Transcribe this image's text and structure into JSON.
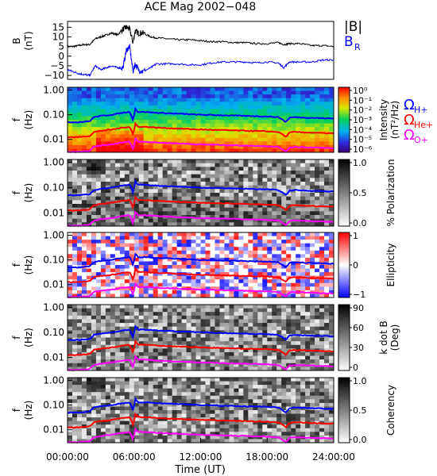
{
  "chart_data": [
    {
      "type": "line",
      "title": "ACE Mag 2002−048",
      "ylabel": "B",
      "yunit": "(nT)",
      "yticks": [
        "15",
        "10",
        "5",
        "0",
        "−5",
        "−10"
      ],
      "ytick_values": [
        15,
        10,
        5,
        0,
        -5,
        -10
      ],
      "ylim": [
        -12,
        18
      ],
      "xlim": [
        0,
        24
      ],
      "series": [
        {
          "name": "|B|",
          "color": "#000000",
          "x": [
            0,
            0.5,
            1,
            1.5,
            2,
            2.5,
            3,
            3.5,
            4,
            4.5,
            5,
            5.3,
            5.6,
            5.9,
            6.1,
            6.4,
            6.8,
            7.5,
            8,
            9,
            10,
            11,
            12,
            13,
            14,
            15,
            16,
            17,
            18,
            19,
            19.5,
            20,
            21,
            22,
            23,
            24
          ],
          "y": [
            5,
            5,
            5.5,
            6,
            6,
            9,
            10,
            11,
            12,
            11,
            14,
            15,
            14,
            7,
            13,
            12,
            12,
            10,
            9.5,
            9,
            8.5,
            8.5,
            8,
            7.5,
            7.5,
            7,
            7,
            6.5,
            6.5,
            7,
            6,
            6.5,
            6.5,
            5.5,
            5.5,
            5
          ]
        },
        {
          "name": "B",
          "name_sub": "R",
          "color": "#0000ff",
          "x": [
            0,
            0.5,
            1,
            1.5,
            2,
            2.5,
            3,
            3.5,
            4,
            4.5,
            5,
            5.3,
            5.6,
            5.9,
            6.1,
            6.4,
            6.8,
            7.5,
            8,
            9,
            10,
            11,
            12,
            13,
            14,
            15,
            16,
            17,
            18,
            19,
            19.5,
            20,
            21,
            22,
            23,
            24
          ],
          "y": [
            -7,
            -8,
            -9,
            -9.5,
            -10,
            -5,
            -7,
            -6,
            -5,
            -6,
            -6,
            3,
            5,
            -8,
            -4,
            -7,
            -8,
            -6,
            -4,
            -4,
            -4,
            -4.5,
            -4.5,
            -3.5,
            -3,
            -3,
            -3,
            -3.5,
            -3,
            -3.5,
            -6,
            -3,
            -3,
            -3,
            -2,
            -2
          ]
        }
      ]
    },
    {
      "type": "heatmap",
      "ylabel": "f",
      "yunit": "(Hz)",
      "yscale": "log",
      "ylim": [
        0.003,
        1.3
      ],
      "yticks": [
        "1.00",
        "0.10",
        "0.01"
      ],
      "colorbar": {
        "label": "Intensity",
        "unit": "(nT²/Hz)",
        "scale": "rainbow",
        "ticks": [
          "10⁰",
          "10⁻¹",
          "10⁻²",
          "10⁻³",
          "10⁻⁴",
          "10⁻⁵",
          "10⁻⁶"
        ]
      },
      "lines": [
        {
          "name": "Ω",
          "name_sub": "H+",
          "color": "#0000ff"
        },
        {
          "name": "Ω",
          "name_sub": "He+",
          "color": "#ff0000"
        },
        {
          "name": "Ω",
          "name_sub": "O+",
          "color": "#ff00ff"
        }
      ]
    },
    {
      "type": "heatmap",
      "ylabel": "f",
      "yunit": "(Hz)",
      "yscale": "log",
      "ylim": [
        0.003,
        1.3
      ],
      "yticks": [
        "1.00",
        "0.10",
        "0.01"
      ],
      "colorbar": {
        "label": "% Polarization",
        "scale": "gray",
        "ticks": [
          "1.0",
          "0.5",
          "0.0"
        ]
      }
    },
    {
      "type": "heatmap",
      "ylabel": "f",
      "yunit": "(Hz)",
      "yscale": "log",
      "ylim": [
        0.003,
        1.3
      ],
      "yticks": [
        "1.00",
        "0.10",
        "0.01"
      ],
      "colorbar": {
        "label": "Ellipticity",
        "scale": "bwr",
        "ticks": [
          "1",
          "0",
          "−1"
        ]
      }
    },
    {
      "type": "heatmap",
      "ylabel": "f",
      "yunit": "(Hz)",
      "yscale": "log",
      "ylim": [
        0.003,
        1.3
      ],
      "yticks": [
        "1.00",
        "0.10",
        "0.01"
      ],
      "colorbar": {
        "label": "k dot B",
        "unit": "(Deg)",
        "scale": "gray",
        "ticks": [
          "90",
          "60",
          "30",
          "0"
        ]
      }
    },
    {
      "type": "heatmap",
      "ylabel": "f",
      "yunit": "(Hz)",
      "yscale": "log",
      "ylim": [
        0.003,
        1.3
      ],
      "yticks": [
        "1.00",
        "0.10",
        "0.01"
      ],
      "colorbar": {
        "label": "Coherency",
        "scale": "gray",
        "ticks": [
          "1.0",
          "0.5",
          "0.0"
        ]
      }
    }
  ],
  "cyclotron": {
    "hours": [
      0,
      1,
      2,
      2.4,
      3,
      4,
      5,
      5.6,
      5.95,
      6.1,
      6.35,
      7,
      8,
      10,
      12,
      14,
      16,
      18,
      19,
      19.7,
      20,
      20.4,
      22,
      24
    ],
    "h_plus": [
      0.05,
      0.05,
      0.055,
      0.08,
      0.09,
      0.1,
      0.12,
      0.13,
      0.05,
      0.18,
      0.13,
      0.13,
      0.12,
      0.11,
      0.1,
      0.095,
      0.09,
      0.085,
      0.08,
      0.05,
      0.075,
      0.08,
      0.075,
      0.07
    ]
  },
  "xaxis": {
    "label": "Time (UT)",
    "ticks": [
      "00:00:00",
      "06:00:00",
      "12:00:00",
      "18:00:00",
      "24:00:00"
    ],
    "tick_values": [
      0,
      6,
      12,
      18,
      24
    ]
  }
}
